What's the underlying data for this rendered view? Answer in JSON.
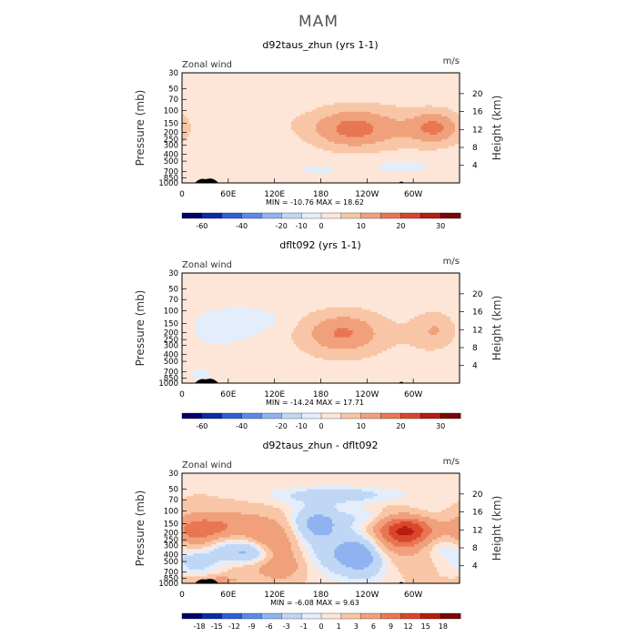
{
  "page_title": "MAM",
  "colors": {
    "cmap_wind": [
      "#03006b",
      "#0b2ca6",
      "#2f5fd6",
      "#5b8ae8",
      "#8fb2f0",
      "#c0d6f5",
      "#e3edfb",
      "#fde6d7",
      "#f8c6a6",
      "#f1a07c",
      "#e97653",
      "#d9462b",
      "#b61c12",
      "#7a0804"
    ],
    "cmap_diff": [
      "#03006b",
      "#0b2ca6",
      "#2f5fd6",
      "#5b8ae8",
      "#8fb2f0",
      "#c0d6f5",
      "#e3edfb",
      "#fde6d7",
      "#f8c6a6",
      "#f1a07c",
      "#e97653",
      "#d9462b",
      "#b61c12",
      "#7a0804"
    ],
    "terrain": "#000000"
  },
  "chart_data": [
    {
      "type": "heatmap",
      "title": "d92taus_zhun (yrs 1-1)",
      "left_label": "Zonal wind",
      "right_label": "m/s",
      "ylabel": "Pressure (mb)",
      "y2label": "Height (km)",
      "x_ticks": [
        "0",
        "60E",
        "120E",
        "180",
        "120W",
        "60W"
      ],
      "y_ticks": [
        "30",
        "50",
        "70",
        "100",
        "150",
        "200",
        "250",
        "300",
        "400",
        "500",
        "700",
        "850",
        "1000"
      ],
      "y2_ticks": [
        "20",
        "16",
        "12",
        "8",
        "4"
      ],
      "stats": "MIN = -10.76   MAX =  18.62",
      "colorbar_labels": [
        "-60",
        "-40",
        "-20",
        "-10",
        "0",
        "10",
        "20",
        "30"
      ],
      "features": [
        {
          "lon": 150,
          "p": 150,
          "v": 3,
          "rl": 18,
          "rp": 0.25
        },
        {
          "lon": 100,
          "p": 200,
          "v": 3,
          "rl": 20,
          "rp": 0.3
        },
        {
          "lon": 55,
          "p": 700,
          "v": 3,
          "rl": 20,
          "rp": 0.2
        },
        {
          "lon": 185,
          "p": 600,
          "v": -3,
          "rl": 35,
          "rp": 0.25
        },
        {
          "lon": 265,
          "p": 550,
          "v": -3,
          "rl": 25,
          "rp": 0.2
        },
        {
          "lon": 300,
          "p": 550,
          "v": -3,
          "rl": 25,
          "rp": 0.2
        },
        {
          "lon": 220,
          "p": 180,
          "v": 19,
          "rl": 38,
          "rp": 0.45
        },
        {
          "lon": 230,
          "p": 170,
          "v": 14,
          "rl": 55,
          "rp": 0.6
        },
        {
          "lon": 330,
          "p": 170,
          "v": 17,
          "rl": 22,
          "rp": 0.35
        },
        {
          "lon": 325,
          "p": 180,
          "v": 12,
          "rl": 35,
          "rp": 0.5
        }
      ],
      "base": 1.5
    },
    {
      "type": "heatmap",
      "title": "dflt092 (yrs 1-1)",
      "left_label": "Zonal wind",
      "right_label": "m/s",
      "ylabel": "Pressure (mb)",
      "y2label": "Height (km)",
      "x_ticks": [
        "0",
        "60E",
        "120E",
        "180",
        "120W",
        "60W"
      ],
      "y_ticks": [
        "30",
        "50",
        "70",
        "100",
        "150",
        "200",
        "250",
        "300",
        "400",
        "500",
        "700",
        "850",
        "1000"
      ],
      "y2_ticks": [
        "20",
        "16",
        "12",
        "8",
        "4"
      ],
      "stats": "MIN = -14.24   MAX =  17.71",
      "colorbar_labels": [
        "-60",
        "-40",
        "-20",
        "-10",
        "0",
        "10",
        "20",
        "30"
      ],
      "features": [
        {
          "lon": 75,
          "p": 150,
          "v": -6,
          "rl": 35,
          "rp": 0.3
        },
        {
          "lon": 40,
          "p": 200,
          "v": -3,
          "rl": 30,
          "rp": 0.3
        },
        {
          "lon": 110,
          "p": 130,
          "v": -3,
          "rl": 25,
          "rp": 0.2
        },
        {
          "lon": 120,
          "p": 600,
          "v": -3,
          "rl": 25,
          "rp": 0.2
        },
        {
          "lon": 30,
          "p": 750,
          "v": -3,
          "rl": 20,
          "rp": 0.2
        },
        {
          "lon": 75,
          "p": 750,
          "v": 3,
          "rl": 30,
          "rp": 0.2
        },
        {
          "lon": 210,
          "p": 200,
          "v": 18,
          "rl": 35,
          "rp": 0.45
        },
        {
          "lon": 205,
          "p": 220,
          "v": 12,
          "rl": 55,
          "rp": 0.7
        },
        {
          "lon": 330,
          "p": 180,
          "v": 13,
          "rl": 20,
          "rp": 0.4
        },
        {
          "lon": 320,
          "p": 220,
          "v": 6,
          "rl": 30,
          "rp": 0.6
        }
      ],
      "base": 1.5
    },
    {
      "type": "heatmap",
      "title": "d92taus_zhun - dflt092",
      "left_label": "Zonal wind",
      "right_label": "m/s",
      "ylabel": "Pressure (mb)",
      "y2label": "Height (km)",
      "x_ticks": [
        "0",
        "60E",
        "120E",
        "180",
        "120W",
        "60W"
      ],
      "y_ticks": [
        "30",
        "50",
        "70",
        "100",
        "150",
        "200",
        "250",
        "300",
        "400",
        "500",
        "700",
        "850",
        "1000"
      ],
      "y2_ticks": [
        "20",
        "16",
        "12",
        "8",
        "4"
      ],
      "stats": "MIN = -6.08   MAX =  9.63",
      "colorbar_labels": [
        "-18",
        "-15",
        "-12",
        "-9",
        "-6",
        "-3",
        "-1",
        "0",
        "1",
        "3",
        "6",
        "9",
        "12",
        "15",
        "18"
      ],
      "features": [
        {
          "lon": 60,
          "p": 170,
          "v": 5,
          "rl": 45,
          "rp": 0.35
        },
        {
          "lon": 20,
          "p": 200,
          "v": 4,
          "rl": 20,
          "rp": 0.35
        },
        {
          "lon": 130,
          "p": 400,
          "v": 4,
          "rl": 15,
          "rp": 0.5
        },
        {
          "lon": 110,
          "p": 250,
          "v": 3,
          "rl": 15,
          "rp": 0.35
        },
        {
          "lon": 290,
          "p": 180,
          "v": 9,
          "rl": 25,
          "rp": 0.35
        },
        {
          "lon": 280,
          "p": 230,
          "v": 4,
          "rl": 40,
          "rp": 0.5
        },
        {
          "lon": 200,
          "p": 60,
          "v": -3,
          "rl": 60,
          "rp": 0.2
        },
        {
          "lon": 175,
          "p": 150,
          "v": -5,
          "rl": 25,
          "rp": 0.4
        },
        {
          "lon": 210,
          "p": 400,
          "v": -4,
          "rl": 30,
          "rp": 0.5
        },
        {
          "lon": 95,
          "p": 400,
          "v": -4,
          "rl": 25,
          "rp": 0.3
        },
        {
          "lon": 60,
          "p": 300,
          "v": -3,
          "rl": 25,
          "rp": 0.3
        },
        {
          "lon": 240,
          "p": 350,
          "v": -4,
          "rl": 20,
          "rp": 0.6
        },
        {
          "lon": 335,
          "p": 300,
          "v": -3,
          "rl": 20,
          "rp": 0.3
        },
        {
          "lon": 20,
          "p": 500,
          "v": -3,
          "rl": 20,
          "rp": 0.3
        },
        {
          "lon": 45,
          "p": 900,
          "v": 3,
          "rl": 25,
          "rp": 0.1
        },
        {
          "lon": 110,
          "p": 600,
          "v": 3,
          "rl": 30,
          "rp": 0.25
        },
        {
          "lon": 250,
          "p": 120,
          "v": -2,
          "rl": 30,
          "rp": 0.2
        },
        {
          "lon": 310,
          "p": 110,
          "v": -2,
          "rl": 25,
          "rp": 0.3
        }
      ],
      "base": 1
    }
  ],
  "cb_levels_wind": [
    -60,
    -40,
    -20,
    -10,
    0,
    10,
    20,
    30
  ],
  "cb_levels_diff": [
    -18,
    -15,
    -12,
    -9,
    -6,
    -3,
    -1,
    0,
    1,
    3,
    6,
    9,
    12,
    15,
    18
  ]
}
